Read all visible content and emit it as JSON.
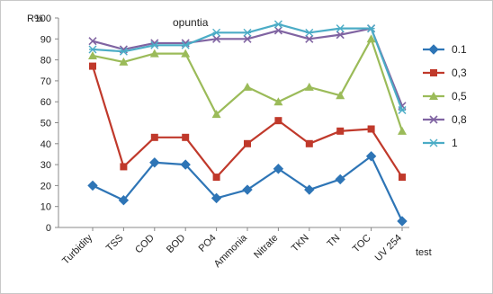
{
  "chart_data": {
    "type": "line",
    "title": "opuntia",
    "ylabel": "R%",
    "xlabel": "test",
    "ylim": [
      0,
      100
    ],
    "ytick_step": 10,
    "grid": false,
    "legend_position": "right",
    "categories": [
      "Turbidity",
      "TSS",
      "COD",
      "BOD",
      "PO4",
      "Ammonia",
      "Nitrate",
      "TKN",
      "TN",
      "TOC",
      "UV 254"
    ],
    "series": [
      {
        "name": "0.1",
        "color": "#2e75b6",
        "marker": "diamond",
        "values": [
          20,
          13,
          31,
          30,
          14,
          18,
          28,
          18,
          23,
          34,
          3
        ]
      },
      {
        "name": "0,3",
        "color": "#c0392b",
        "marker": "square",
        "values": [
          77,
          29,
          43,
          43,
          24,
          40,
          51,
          40,
          46,
          47,
          24
        ]
      },
      {
        "name": "0,5",
        "color": "#9bbb59",
        "marker": "triangle",
        "values": [
          82,
          79,
          83,
          83,
          54,
          67,
          60,
          67,
          63,
          90,
          46
        ]
      },
      {
        "name": "0,8",
        "color": "#8064a2",
        "marker": "x",
        "values": [
          89,
          85,
          88,
          88,
          90,
          90,
          94,
          90,
          92,
          95,
          58
        ]
      },
      {
        "name": "1",
        "color": "#4bacc6",
        "marker": "star",
        "values": [
          85,
          84,
          87,
          87,
          93,
          93,
          97,
          93,
          95,
          95,
          56
        ]
      }
    ]
  }
}
